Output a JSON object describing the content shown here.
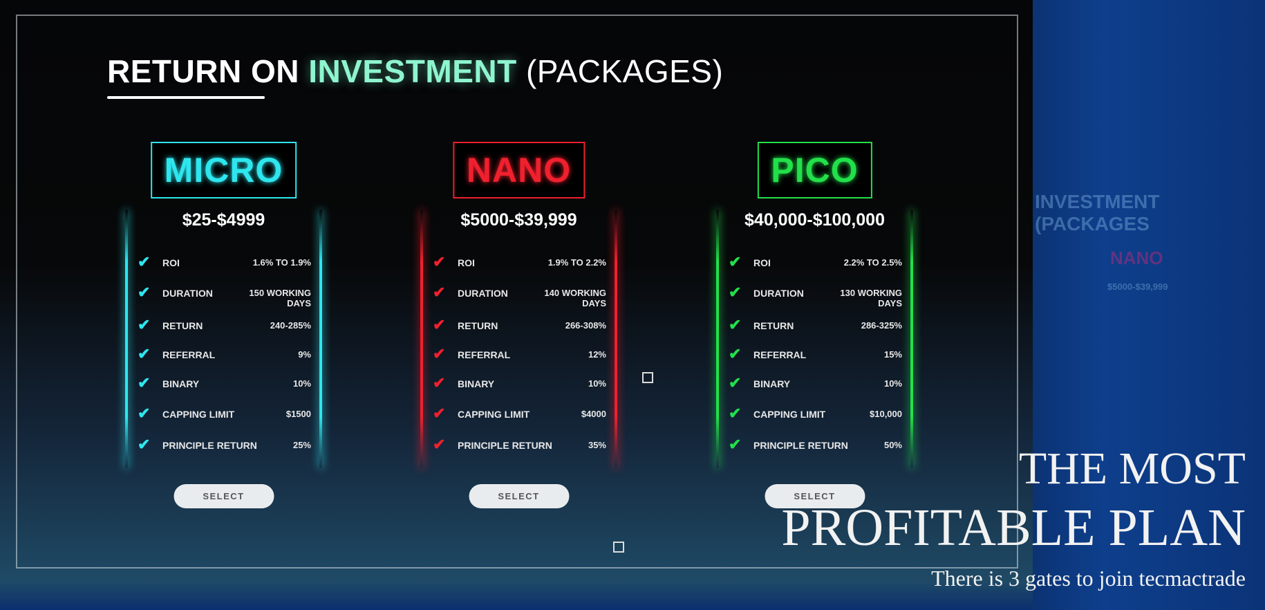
{
  "title": {
    "part1": "RETURN ON",
    "part2": "INVESTMENT",
    "part3": "(PACKAGES)"
  },
  "packages": [
    {
      "name": "MICRO",
      "color": "#2ee6ee",
      "price": "$25-$4999",
      "select_label": "SELECT",
      "rows": [
        {
          "label": "ROI",
          "value": "1.6% TO 1.9%"
        },
        {
          "label": "DURATION",
          "value": "150 WORKING DAYS"
        },
        {
          "label": "RETURN",
          "value": "240-285%"
        },
        {
          "label": "REFERRAL",
          "value": "9%"
        },
        {
          "label": "BINARY",
          "value": "10%"
        },
        {
          "label": "CAPPING LIMIT",
          "value": "$1500"
        },
        {
          "label": "PRINCIPLE RETURN",
          "value": "25%"
        }
      ]
    },
    {
      "name": "NANO",
      "color": "#f0202e",
      "price": "$5000-$39,999",
      "select_label": "SELECT",
      "rows": [
        {
          "label": "ROI",
          "value": "1.9% TO 2.2%"
        },
        {
          "label": "DURATION",
          "value": "140 WORKING DAYS"
        },
        {
          "label": "RETURN",
          "value": "266-308%"
        },
        {
          "label": "REFERRAL",
          "value": "12%"
        },
        {
          "label": "BINARY",
          "value": "10%"
        },
        {
          "label": "CAPPING LIMIT",
          "value": "$4000"
        },
        {
          "label": "PRINCIPLE RETURN",
          "value": "35%"
        }
      ]
    },
    {
      "name": "PICO",
      "color": "#22e04a",
      "price": "$40,000-$100,000",
      "select_label": "SELECT",
      "rows": [
        {
          "label": "ROI",
          "value": "2.2% TO 2.5%"
        },
        {
          "label": "DURATION",
          "value": "130 WORKING DAYS"
        },
        {
          "label": "RETURN",
          "value": "286-325%"
        },
        {
          "label": "REFERRAL",
          "value": "15%"
        },
        {
          "label": "BINARY",
          "value": "10%"
        },
        {
          "label": "CAPPING LIMIT",
          "value": "$10,000"
        },
        {
          "label": "PRINCIPLE RETURN",
          "value": "50%"
        }
      ]
    }
  ],
  "background_ghost": {
    "title": "INVESTMENT (PACKAGES",
    "name": "NANO",
    "price": "$5000-$39,999"
  },
  "caption": {
    "line1": "THE MOST",
    "line2": "PROFITABLE PLAN",
    "line3": "There is 3 gates to join tecmactrade"
  },
  "check_icon": "checkmark-icon"
}
